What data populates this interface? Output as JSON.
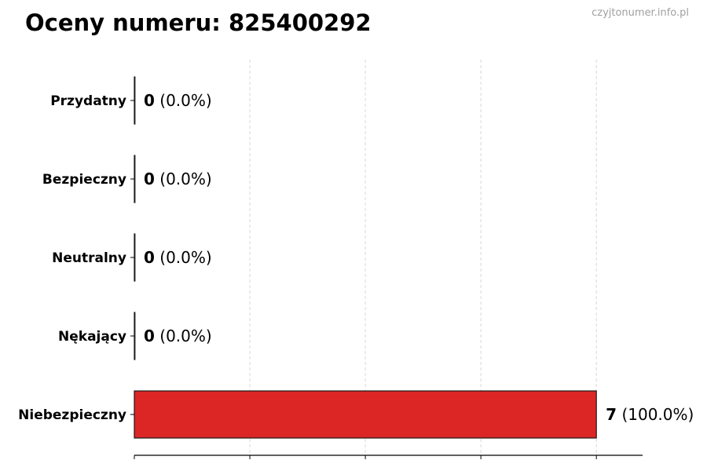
{
  "watermark": "czyjtonumer.info.pl",
  "chart_data": {
    "type": "bar",
    "orientation": "horizontal",
    "title": "Oceny numeru: 825400292",
    "categories": [
      "Przydatny",
      "Bezpieczny",
      "Neutralny",
      "Nękający",
      "Niebezpieczny"
    ],
    "values": [
      0,
      0,
      0,
      0,
      7
    ],
    "value_labels": [
      "(0.0%)",
      "(0.0%)",
      "(0.0%)",
      "(0.0%)",
      "(100.0%)"
    ],
    "xlim": [
      0,
      7.7
    ],
    "xticks": [
      0,
      1.75,
      3.5,
      5.25,
      7
    ],
    "xtick_labels_shown": false,
    "grid": "x, dashed",
    "bar_color": "#dc2626",
    "edge_color": "#1a1a1a",
    "xlabel": "",
    "ylabel": ""
  }
}
